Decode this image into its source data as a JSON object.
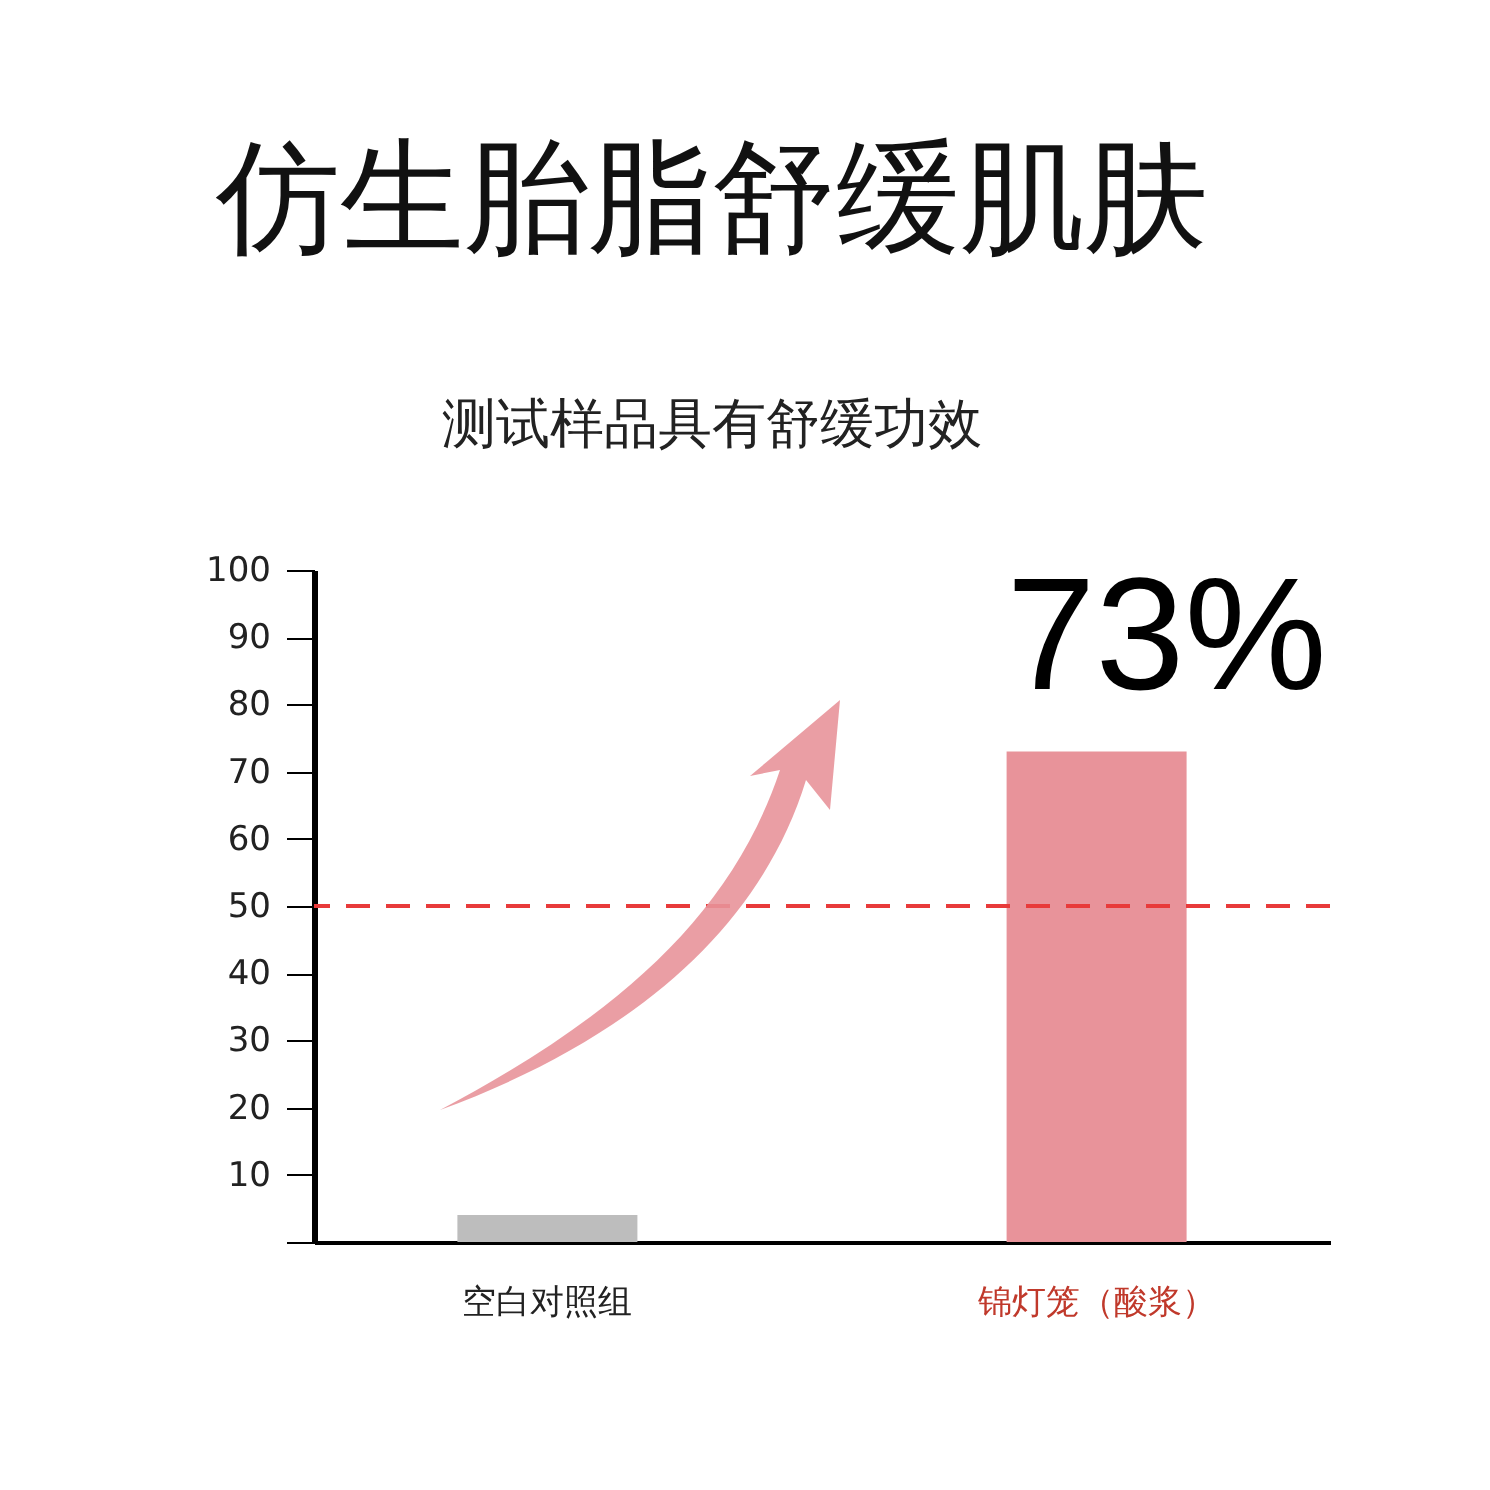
{
  "chart_data": {
    "type": "bar",
    "title": "仿生胎脂舒缓肌肤",
    "subtitle": "测试样品具有舒缓功效",
    "categories": [
      "空白对照组",
      "锦灯笼（酸浆）"
    ],
    "values": [
      4,
      73
    ],
    "colors": [
      "#bdbdbd",
      "#e8939a"
    ],
    "value_labels": [
      null,
      "73%"
    ],
    "ylim": [
      0,
      100
    ],
    "yticks": [
      {
        "value": 0,
        "label": null
      },
      10,
      20,
      30,
      40,
      50,
      60,
      70,
      80,
      90,
      100
    ],
    "ref_lines": [
      {
        "axis": "y",
        "value": 50,
        "color": "#e83a3a",
        "line_style": "dashed"
      }
    ],
    "grid": false
  }
}
